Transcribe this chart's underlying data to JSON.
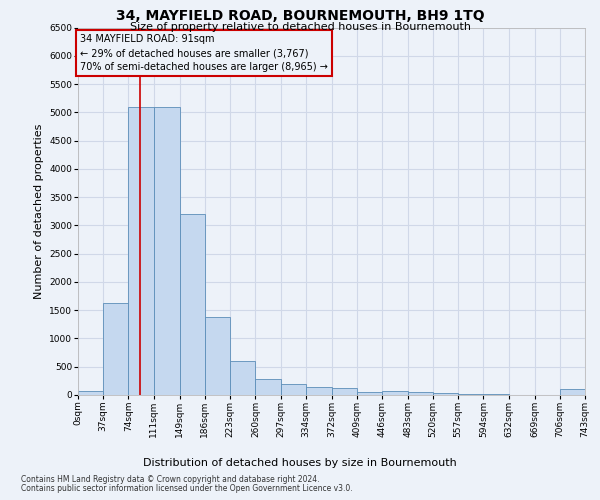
{
  "title": "34, MAYFIELD ROAD, BOURNEMOUTH, BH9 1TQ",
  "subtitle": "Size of property relative to detached houses in Bournemouth",
  "xlabel": "Distribution of detached houses by size in Bournemouth",
  "ylabel": "Number of detached properties",
  "footnote1": "Contains HM Land Registry data © Crown copyright and database right 2024.",
  "footnote2": "Contains public sector information licensed under the Open Government Licence v3.0.",
  "annotation_title": "34 MAYFIELD ROAD: 91sqm",
  "annotation_line1": "← 29% of detached houses are smaller (3,767)",
  "annotation_line2": "70% of semi-detached houses are larger (8,965) →",
  "property_size": 91,
  "bin_edges": [
    0,
    37,
    74,
    111,
    149,
    186,
    223,
    260,
    297,
    334,
    372,
    409,
    446,
    483,
    520,
    557,
    594,
    632,
    669,
    706,
    743
  ],
  "bar_heights": [
    75,
    1625,
    5100,
    5100,
    3200,
    1375,
    600,
    275,
    200,
    150,
    125,
    50,
    75,
    50,
    30,
    15,
    10,
    5,
    5,
    100
  ],
  "bar_color": "#c5d8ef",
  "bar_edgecolor": "#5b8db8",
  "vline_color": "#cc0000",
  "vline_x": 91,
  "ylim": [
    0,
    6500
  ],
  "yticks": [
    0,
    500,
    1000,
    1500,
    2000,
    2500,
    3000,
    3500,
    4000,
    4500,
    5000,
    5500,
    6000,
    6500
  ],
  "bg_color": "#edf2f9",
  "grid_color": "#d0d8e8",
  "annotation_edge_color": "#cc0000",
  "title_fontsize": 10,
  "subtitle_fontsize": 8,
  "ylabel_fontsize": 8,
  "xlabel_fontsize": 8,
  "tick_fontsize": 6.5,
  "annotation_fontsize": 7,
  "footnote_fontsize": 5.5
}
